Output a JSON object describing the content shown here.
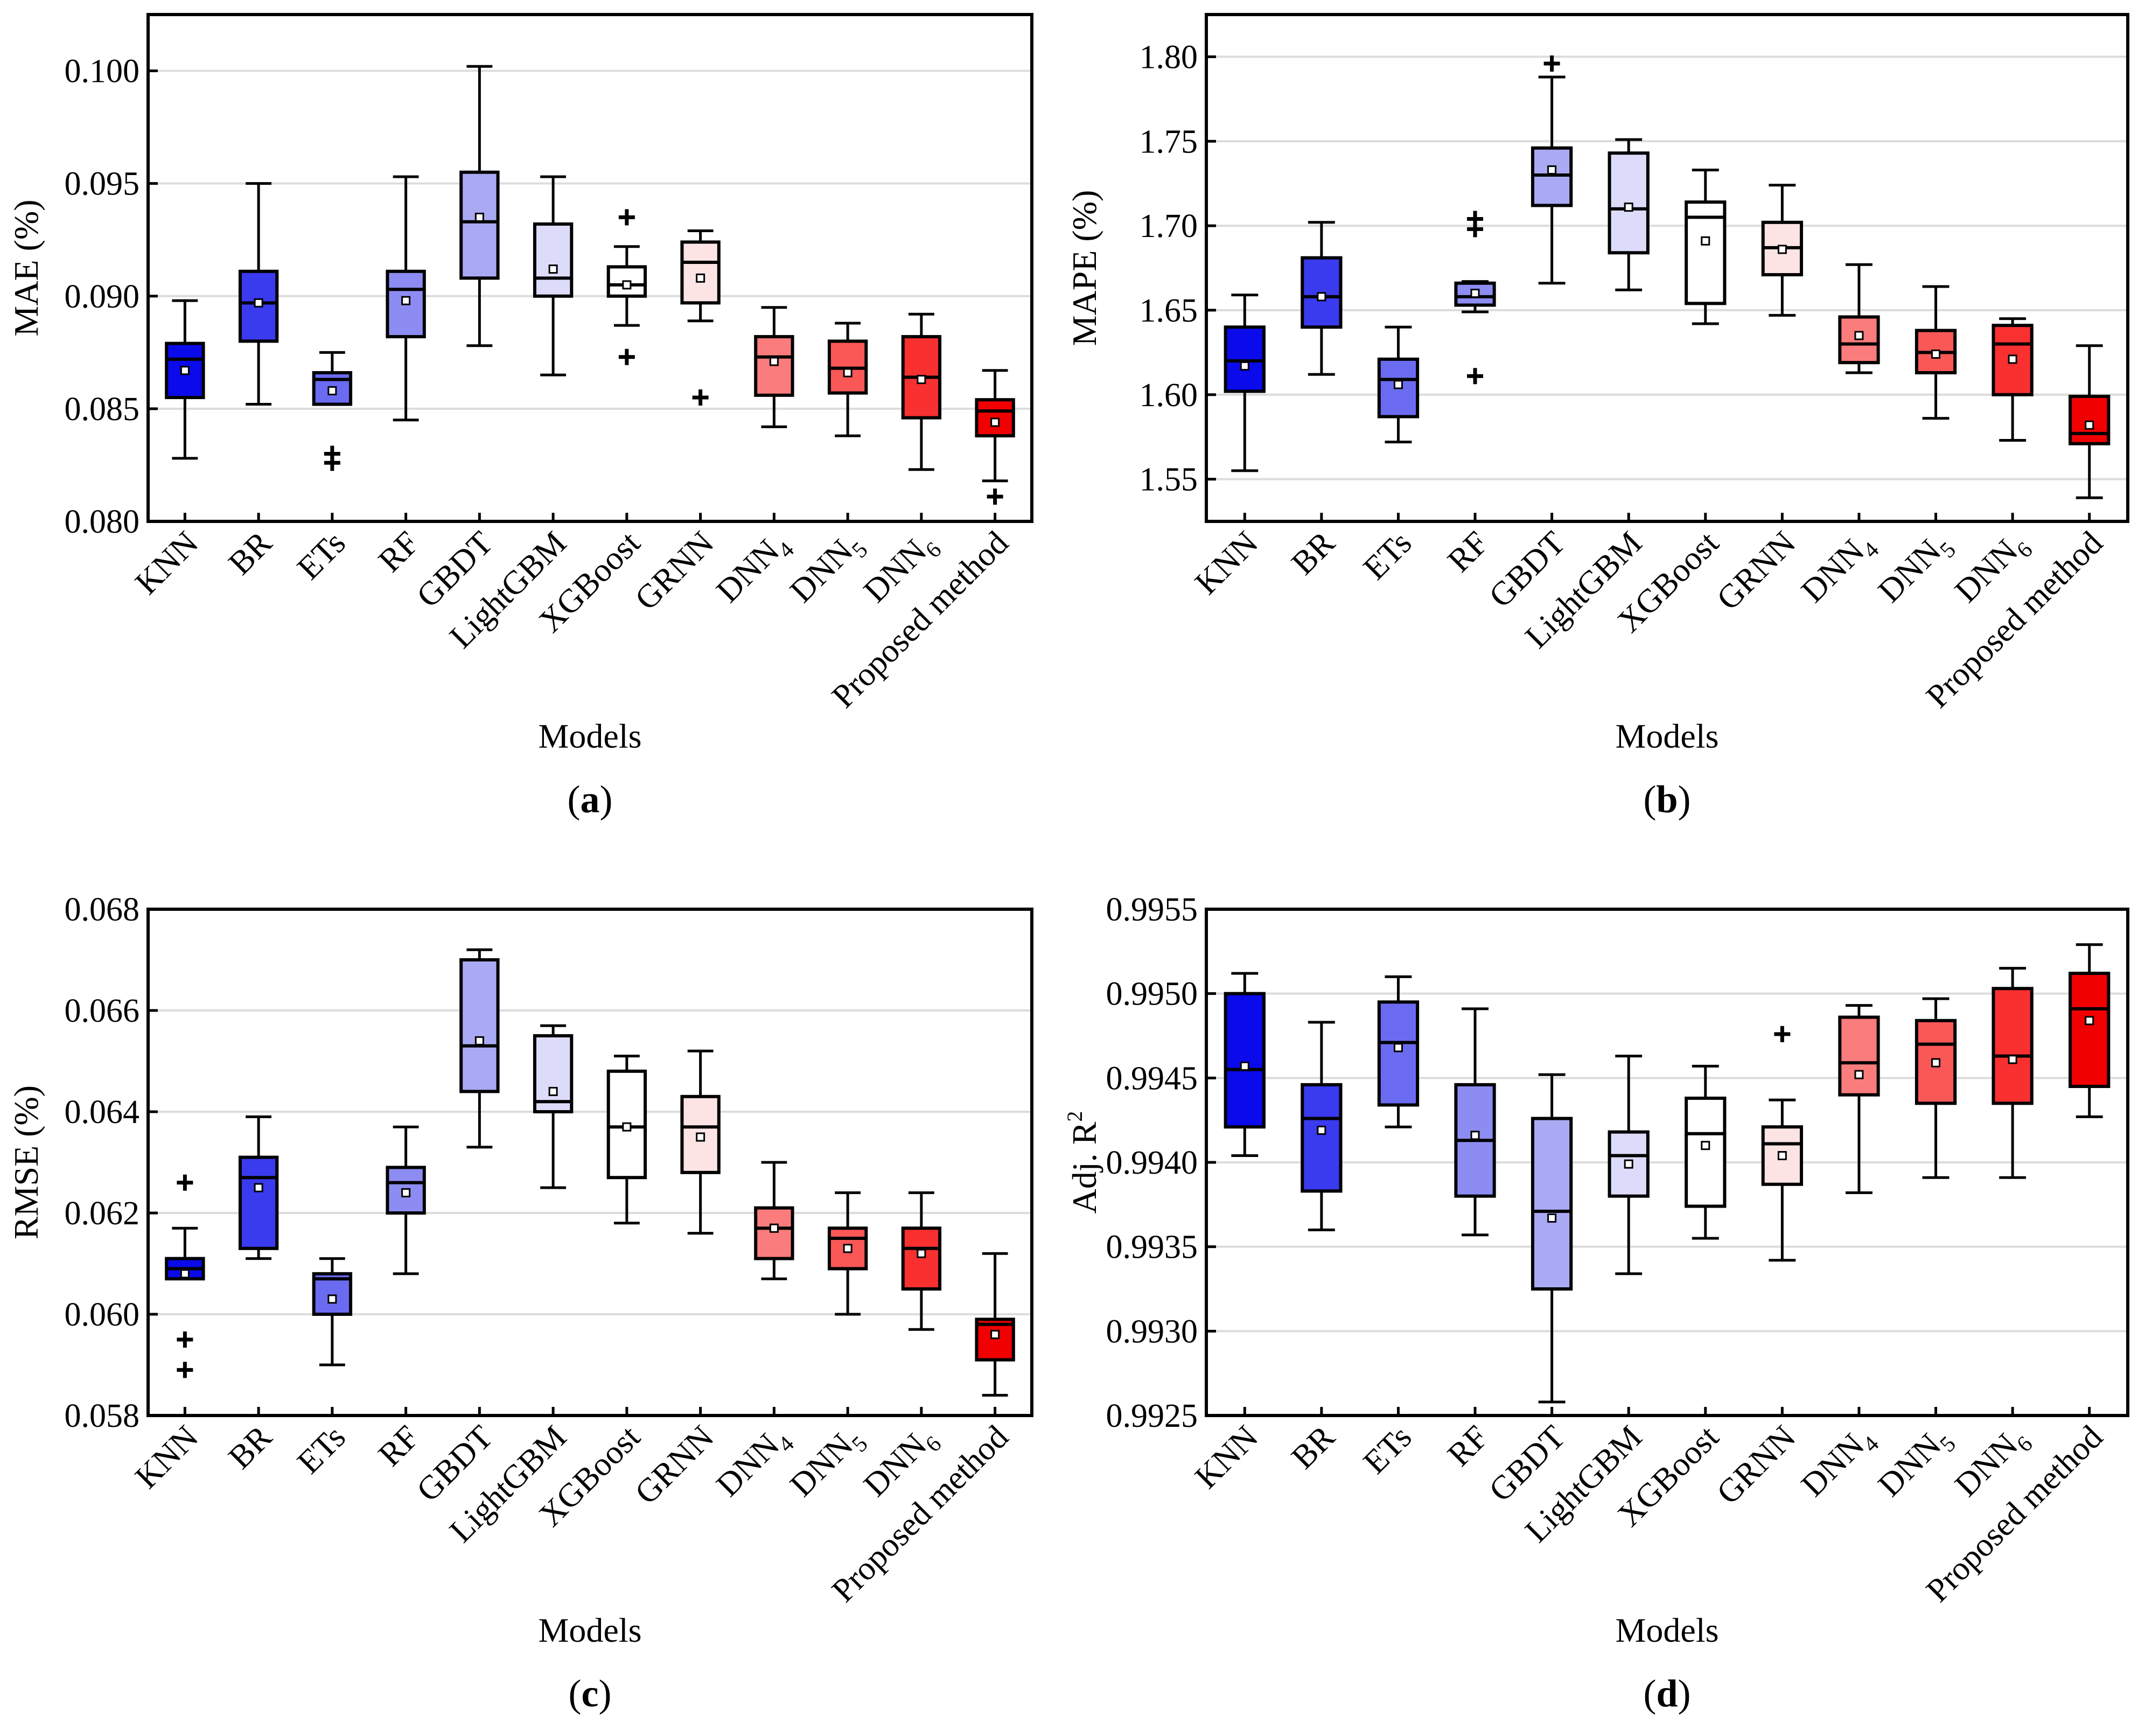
{
  "models": [
    "KNN",
    "BR",
    "ETs",
    "RF",
    "GBDT",
    "LightGBM",
    "XGBoost",
    "GRNN",
    "DNN4",
    "DNN5",
    "DNN6",
    "Proposed method"
  ],
  "model_labels": [
    {
      "base": "KNN",
      "sub": ""
    },
    {
      "base": "BR",
      "sub": ""
    },
    {
      "base": "ETs",
      "sub": ""
    },
    {
      "base": "RF",
      "sub": ""
    },
    {
      "base": "GBDT",
      "sub": ""
    },
    {
      "base": "LightGBM",
      "sub": ""
    },
    {
      "base": "XGBoost",
      "sub": ""
    },
    {
      "base": "GRNN",
      "sub": ""
    },
    {
      "base": "DNN",
      "sub": "4"
    },
    {
      "base": "DNN",
      "sub": "5"
    },
    {
      "base": "DNN",
      "sub": "6"
    },
    {
      "base": "Proposed method",
      "sub": ""
    }
  ],
  "colors": [
    "#0a0aeb",
    "#3a3aee",
    "#6b6bf2",
    "#8c8cf2",
    "#a9a9f4",
    "#dcdcfa",
    "#ffffff",
    "#fde4e4",
    "#fb7c7c",
    "#fa5757",
    "#f83030",
    "#f00000"
  ],
  "chart_data": [
    {
      "type": "box",
      "label": "a",
      "title": "",
      "xlabel": "Models",
      "ylabel": "MAE (%)",
      "ylim": [
        0.08,
        0.1025
      ],
      "yticks": [
        0.08,
        0.085,
        0.09,
        0.095,
        0.1
      ],
      "ytick_labels": [
        "0.080",
        "0.085",
        "0.090",
        "0.095",
        "0.100"
      ],
      "grid": true,
      "boxes": [
        {
          "model": "KNN",
          "min": 0.0828,
          "q1": 0.0855,
          "median": 0.0872,
          "q3": 0.0879,
          "max": 0.0898,
          "mean": 0.0867,
          "outliers": []
        },
        {
          "model": "BR",
          "min": 0.0852,
          "q1": 0.088,
          "median": 0.0897,
          "q3": 0.0911,
          "max": 0.095,
          "mean": 0.0897,
          "outliers": []
        },
        {
          "model": "ETs",
          "min": 0.0852,
          "q1": 0.0852,
          "median": 0.0863,
          "q3": 0.0866,
          "max": 0.0875,
          "mean": 0.0858,
          "outliers": [
            0.083,
            0.0826
          ]
        },
        {
          "model": "RF",
          "min": 0.0845,
          "q1": 0.0882,
          "median": 0.0903,
          "q3": 0.0911,
          "max": 0.0953,
          "mean": 0.0898,
          "outliers": []
        },
        {
          "model": "GBDT",
          "min": 0.0878,
          "q1": 0.0908,
          "median": 0.0933,
          "q3": 0.0955,
          "max": 0.1002,
          "mean": 0.0935,
          "outliers": []
        },
        {
          "model": "LightGBM",
          "min": 0.0865,
          "q1": 0.09,
          "median": 0.0908,
          "q3": 0.0932,
          "max": 0.0953,
          "mean": 0.0912,
          "outliers": []
        },
        {
          "model": "XGBoost",
          "min": 0.0887,
          "q1": 0.09,
          "median": 0.0905,
          "q3": 0.0913,
          "max": 0.0922,
          "mean": 0.0905,
          "outliers": [
            0.0935,
            0.0873
          ]
        },
        {
          "model": "GRNN",
          "min": 0.0889,
          "q1": 0.0897,
          "median": 0.0915,
          "q3": 0.0924,
          "max": 0.0929,
          "mean": 0.0908,
          "outliers": [
            0.0855
          ]
        },
        {
          "model": "DNN4",
          "min": 0.0842,
          "q1": 0.0856,
          "median": 0.0873,
          "q3": 0.0882,
          "max": 0.0895,
          "mean": 0.0871,
          "outliers": []
        },
        {
          "model": "DNN5",
          "min": 0.0838,
          "q1": 0.0857,
          "median": 0.0868,
          "q3": 0.088,
          "max": 0.0888,
          "mean": 0.0866,
          "outliers": []
        },
        {
          "model": "DNN6",
          "min": 0.0823,
          "q1": 0.0846,
          "median": 0.0864,
          "q3": 0.0882,
          "max": 0.0892,
          "mean": 0.0863,
          "outliers": []
        },
        {
          "model": "Proposed method",
          "min": 0.0818,
          "q1": 0.0838,
          "median": 0.0849,
          "q3": 0.0854,
          "max": 0.0867,
          "mean": 0.0844,
          "outliers": [
            0.0811
          ]
        }
      ]
    },
    {
      "type": "box",
      "label": "b",
      "title": "",
      "xlabel": "Models",
      "ylabel": "MAPE (%)",
      "ylim": [
        1.525,
        1.825
      ],
      "yticks": [
        1.55,
        1.6,
        1.65,
        1.7,
        1.75,
        1.8
      ],
      "ytick_labels": [
        "1.55",
        "1.60",
        "1.65",
        "1.70",
        "1.75",
        "1.80"
      ],
      "grid": true,
      "boxes": [
        {
          "model": "KNN",
          "min": 1.555,
          "q1": 1.602,
          "median": 1.62,
          "q3": 1.64,
          "max": 1.659,
          "mean": 1.617,
          "outliers": []
        },
        {
          "model": "BR",
          "min": 1.612,
          "q1": 1.64,
          "median": 1.658,
          "q3": 1.681,
          "max": 1.702,
          "mean": 1.658,
          "outliers": []
        },
        {
          "model": "ETs",
          "min": 1.572,
          "q1": 1.587,
          "median": 1.609,
          "q3": 1.621,
          "max": 1.64,
          "mean": 1.606,
          "outliers": []
        },
        {
          "model": "RF",
          "min": 1.649,
          "q1": 1.653,
          "median": 1.658,
          "q3": 1.666,
          "max": 1.667,
          "mean": 1.66,
          "outliers": [
            1.704,
            1.698,
            1.611
          ]
        },
        {
          "model": "GBDT",
          "min": 1.666,
          "q1": 1.712,
          "median": 1.73,
          "q3": 1.746,
          "max": 1.788,
          "mean": 1.733,
          "outliers": [
            1.796
          ]
        },
        {
          "model": "LightGBM",
          "min": 1.662,
          "q1": 1.684,
          "median": 1.71,
          "q3": 1.743,
          "max": 1.751,
          "mean": 1.711,
          "outliers": []
        },
        {
          "model": "XGBoost",
          "min": 1.642,
          "q1": 1.654,
          "median": 1.705,
          "q3": 1.714,
          "max": 1.733,
          "mean": 1.691,
          "outliers": []
        },
        {
          "model": "GRNN",
          "min": 1.647,
          "q1": 1.671,
          "median": 1.687,
          "q3": 1.702,
          "max": 1.724,
          "mean": 1.686,
          "outliers": []
        },
        {
          "model": "DNN4",
          "min": 1.613,
          "q1": 1.619,
          "median": 1.63,
          "q3": 1.646,
          "max": 1.677,
          "mean": 1.635,
          "outliers": []
        },
        {
          "model": "DNN5",
          "min": 1.586,
          "q1": 1.613,
          "median": 1.625,
          "q3": 1.638,
          "max": 1.664,
          "mean": 1.624,
          "outliers": []
        },
        {
          "model": "DNN6",
          "min": 1.573,
          "q1": 1.6,
          "median": 1.63,
          "q3": 1.641,
          "max": 1.645,
          "mean": 1.621,
          "outliers": []
        },
        {
          "model": "Proposed method",
          "min": 1.539,
          "q1": 1.571,
          "median": 1.577,
          "q3": 1.599,
          "max": 1.629,
          "mean": 1.582,
          "outliers": []
        }
      ]
    },
    {
      "type": "box",
      "label": "c",
      "title": "",
      "xlabel": "Models",
      "ylabel": "RMSE (%)",
      "ylim": [
        0.058,
        0.068
      ],
      "yticks": [
        0.058,
        0.06,
        0.062,
        0.064,
        0.066,
        0.068
      ],
      "ytick_labels": [
        "0.058",
        "0.060",
        "0.062",
        "0.064",
        "0.066",
        "0.068"
      ],
      "grid": true,
      "boxes": [
        {
          "model": "KNN",
          "min": 0.0607,
          "q1": 0.0607,
          "median": 0.0609,
          "q3": 0.0611,
          "max": 0.0617,
          "mean": 0.0608,
          "outliers": [
            0.0626,
            0.0595,
            0.0589
          ]
        },
        {
          "model": "BR",
          "min": 0.0611,
          "q1": 0.0613,
          "median": 0.0627,
          "q3": 0.0631,
          "max": 0.0639,
          "mean": 0.0625,
          "outliers": []
        },
        {
          "model": "ETs",
          "min": 0.059,
          "q1": 0.06,
          "median": 0.0607,
          "q3": 0.0608,
          "max": 0.0611,
          "mean": 0.0603,
          "outliers": []
        },
        {
          "model": "RF",
          "min": 0.0608,
          "q1": 0.062,
          "median": 0.0626,
          "q3": 0.0629,
          "max": 0.0637,
          "mean": 0.0624,
          "outliers": []
        },
        {
          "model": "GBDT",
          "min": 0.0633,
          "q1": 0.0644,
          "median": 0.0653,
          "q3": 0.067,
          "max": 0.0672,
          "mean": 0.0654,
          "outliers": []
        },
        {
          "model": "LightGBM",
          "min": 0.0625,
          "q1": 0.064,
          "median": 0.0642,
          "q3": 0.0655,
          "max": 0.0657,
          "mean": 0.0644,
          "outliers": []
        },
        {
          "model": "XGBoost",
          "min": 0.0618,
          "q1": 0.0627,
          "median": 0.0637,
          "q3": 0.0648,
          "max": 0.0651,
          "mean": 0.0637,
          "outliers": []
        },
        {
          "model": "GRNN",
          "min": 0.0616,
          "q1": 0.0628,
          "median": 0.0637,
          "q3": 0.0643,
          "max": 0.0652,
          "mean": 0.0635,
          "outliers": []
        },
        {
          "model": "DNN4",
          "min": 0.0607,
          "q1": 0.0611,
          "median": 0.0617,
          "q3": 0.0621,
          "max": 0.063,
          "mean": 0.0617,
          "outliers": []
        },
        {
          "model": "DNN5",
          "min": 0.06,
          "q1": 0.0609,
          "median": 0.0615,
          "q3": 0.0617,
          "max": 0.0624,
          "mean": 0.0613,
          "outliers": []
        },
        {
          "model": "DNN6",
          "min": 0.0597,
          "q1": 0.0605,
          "median": 0.0613,
          "q3": 0.0617,
          "max": 0.0624,
          "mean": 0.0612,
          "outliers": []
        },
        {
          "model": "Proposed method",
          "min": 0.0584,
          "q1": 0.0591,
          "median": 0.0598,
          "q3": 0.0599,
          "max": 0.0612,
          "mean": 0.0596,
          "outliers": []
        }
      ]
    },
    {
      "type": "box",
      "label": "d",
      "title": "",
      "xlabel": "Models",
      "ylabel_base": "Adj. R",
      "ylabel_sup": "2",
      "ylim": [
        0.9925,
        0.9955
      ],
      "yticks": [
        0.9925,
        0.993,
        0.9935,
        0.994,
        0.9945,
        0.995,
        0.9955
      ],
      "ytick_labels": [
        "0.9925",
        "0.9930",
        "0.9935",
        "0.9940",
        "0.9945",
        "0.9950",
        "0.9955"
      ],
      "grid": true,
      "boxes": [
        {
          "model": "KNN",
          "min": 0.99404,
          "q1": 0.99421,
          "median": 0.99455,
          "q3": 0.995,
          "max": 0.99512,
          "mean": 0.99457,
          "outliers": []
        },
        {
          "model": "BR",
          "min": 0.9936,
          "q1": 0.99383,
          "median": 0.99426,
          "q3": 0.99446,
          "max": 0.99483,
          "mean": 0.99419,
          "outliers": []
        },
        {
          "model": "ETs",
          "min": 0.99421,
          "q1": 0.99434,
          "median": 0.99471,
          "q3": 0.99495,
          "max": 0.9951,
          "mean": 0.99468,
          "outliers": []
        },
        {
          "model": "RF",
          "min": 0.99357,
          "q1": 0.9938,
          "median": 0.99413,
          "q3": 0.99446,
          "max": 0.99491,
          "mean": 0.99416,
          "outliers": []
        },
        {
          "model": "GBDT",
          "min": 0.99258,
          "q1": 0.99325,
          "median": 0.99371,
          "q3": 0.99426,
          "max": 0.99452,
          "mean": 0.99367,
          "outliers": []
        },
        {
          "model": "LightGBM",
          "min": 0.99334,
          "q1": 0.9938,
          "median": 0.99404,
          "q3": 0.99418,
          "max": 0.99463,
          "mean": 0.99399,
          "outliers": []
        },
        {
          "model": "XGBoost",
          "min": 0.99355,
          "q1": 0.99374,
          "median": 0.99417,
          "q3": 0.99438,
          "max": 0.99457,
          "mean": 0.9941,
          "outliers": []
        },
        {
          "model": "GRNN",
          "min": 0.99342,
          "q1": 0.99387,
          "median": 0.99411,
          "q3": 0.99421,
          "max": 0.99437,
          "mean": 0.99404,
          "outliers": [
            0.99476
          ]
        },
        {
          "model": "DNN4",
          "min": 0.99382,
          "q1": 0.9944,
          "median": 0.99459,
          "q3": 0.99486,
          "max": 0.99493,
          "mean": 0.99452,
          "outliers": []
        },
        {
          "model": "DNN5",
          "min": 0.99391,
          "q1": 0.99435,
          "median": 0.9947,
          "q3": 0.99484,
          "max": 0.99497,
          "mean": 0.99459,
          "outliers": []
        },
        {
          "model": "DNN6",
          "min": 0.99391,
          "q1": 0.99435,
          "median": 0.99463,
          "q3": 0.99503,
          "max": 0.99515,
          "mean": 0.99461,
          "outliers": []
        },
        {
          "model": "Proposed method",
          "min": 0.99427,
          "q1": 0.99445,
          "median": 0.99491,
          "q3": 0.99512,
          "max": 0.99529,
          "mean": 0.99484,
          "outliers": []
        }
      ]
    }
  ]
}
